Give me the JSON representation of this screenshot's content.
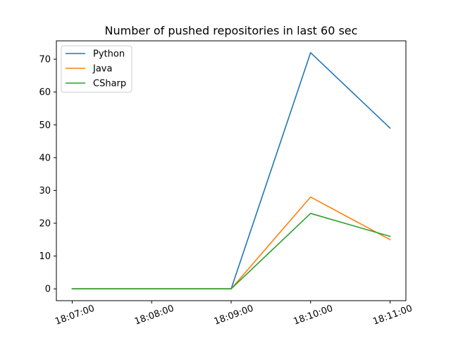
{
  "chart_data": {
    "type": "line",
    "title": "Number of pushed repositories in last 60 sec",
    "xlabel": "",
    "ylabel": "",
    "x": [
      "18:07:00",
      "18:08:00",
      "18:09:00",
      "18:10:00",
      "18:11:00"
    ],
    "x_tick_labels": [
      "18:07:00",
      "18:08:00",
      "18:09:00",
      "18:10:00",
      "18:11:00"
    ],
    "y_ticks": [
      0,
      10,
      20,
      30,
      40,
      50,
      60,
      70
    ],
    "ylim": [
      -3.6,
      75.6
    ],
    "grid": false,
    "legend_position": "upper-left",
    "series": [
      {
        "name": "Python",
        "color": "#1f77b4",
        "values": [
          0,
          0,
          0,
          72,
          49
        ]
      },
      {
        "name": "Java",
        "color": "#ff7f0e",
        "values": [
          0,
          0,
          0,
          28,
          15
        ]
      },
      {
        "name": "CSharp",
        "color": "#2ca02c",
        "values": [
          0,
          0,
          0,
          23,
          16
        ]
      }
    ]
  }
}
